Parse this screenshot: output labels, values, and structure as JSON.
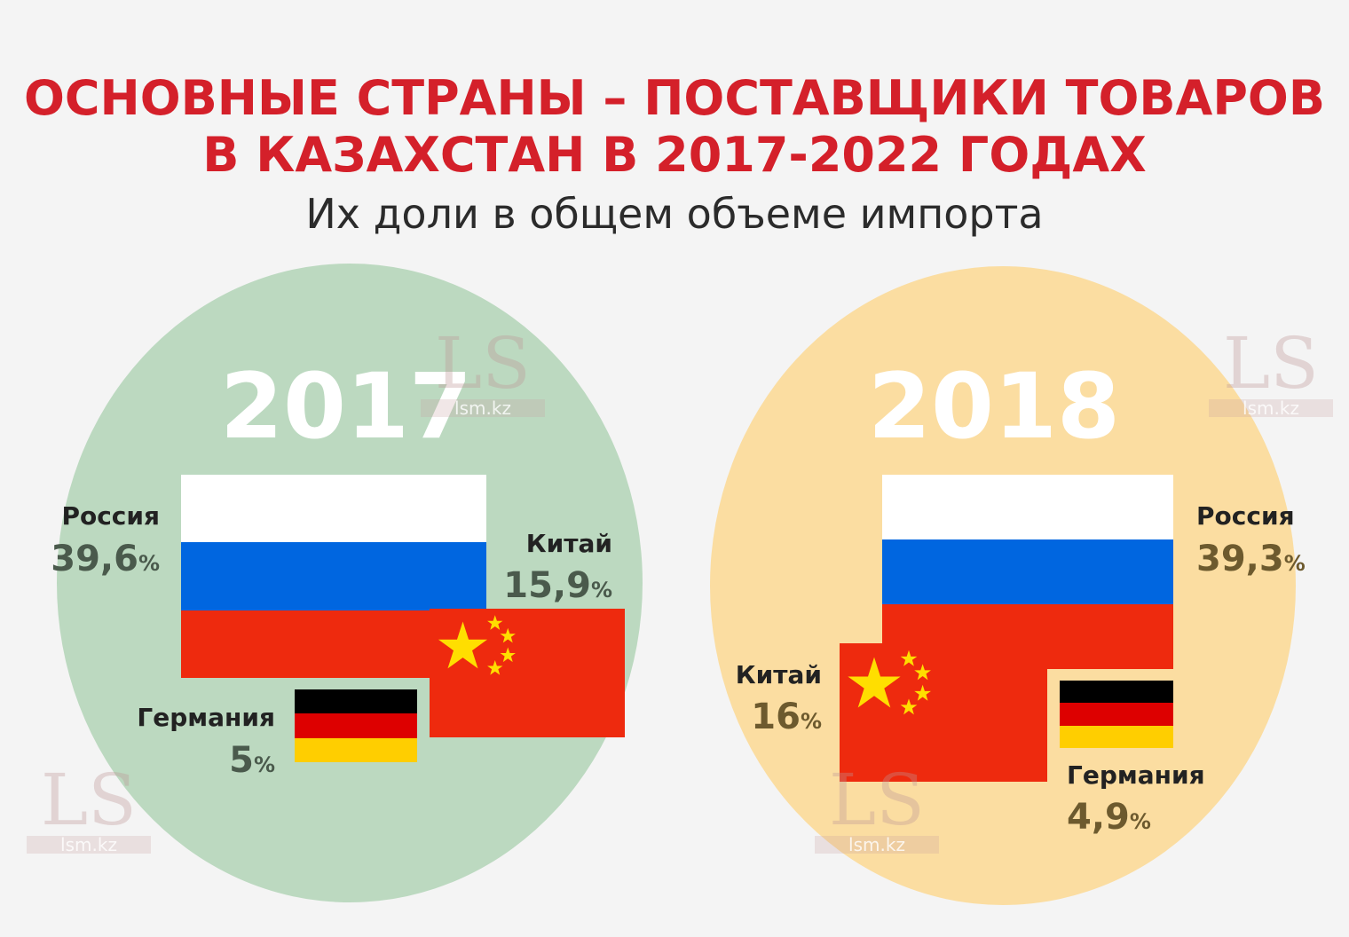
{
  "title": {
    "line1": "ОСНОВНЫЕ СТРАНЫ – ПОСТАВЩИКИ ТОВАРОВ",
    "line2": "В КАЗАХСТАН В 2017-2022 ГОДАХ"
  },
  "subtitle": "Их доли в общем объеме импорта",
  "watermark": {
    "logo": "LS",
    "site": "lsm.kz"
  },
  "colors": {
    "circle_2017": "#bcd9c0",
    "circle_2018": "#fbdda1",
    "title": "#d4202a"
  },
  "years": [
    {
      "year": "2017",
      "russia": {
        "name": "Россия",
        "value": "39,6",
        "unit": "%"
      },
      "china": {
        "name": "Китай",
        "value": "15,9",
        "unit": "%"
      },
      "germany": {
        "name": "Германия",
        "value": "5",
        "unit": "%"
      }
    },
    {
      "year": "2018",
      "russia": {
        "name": "Россия",
        "value": "39,3",
        "unit": "%"
      },
      "china": {
        "name": "Китай",
        "value": "16",
        "unit": "%"
      },
      "germany": {
        "name": "Германия",
        "value": "4,9",
        "unit": "%"
      }
    }
  ],
  "icons": [
    "flag-russia-icon",
    "flag-china-icon",
    "flag-germany-icon"
  ]
}
